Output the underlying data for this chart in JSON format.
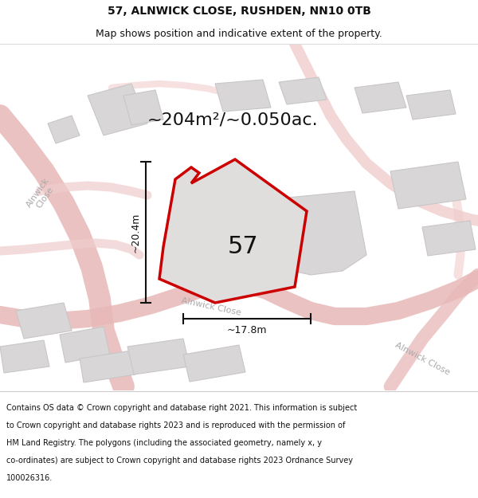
{
  "title_line1": "57, ALNWICK CLOSE, RUSHDEN, NN10 0TB",
  "title_line2": "Map shows position and indicative extent of the property.",
  "area_text": "~204m²/~0.050ac.",
  "label_57": "57",
  "dim_height": "~20.4m",
  "dim_width": "~17.8m",
  "footer_text": "Contains OS data © Crown copyright and database right 2021. This information is subject to Crown copyright and database rights 2023 and is reproduced with the permission of HM Land Registry. The polygons (including the associated geometry, namely x, y co-ordinates) are subject to Crown copyright and database rights 2023 Ordnance Survey 100026316.",
  "map_bg": "#f2f0f0",
  "road_color_main": "#e8b8b8",
  "road_color_light": "#f0cccc",
  "building_fill": "#d8d6d6",
  "building_stroke": "#c8c6c6",
  "plot_fill": "#e0dedc",
  "plot_stroke": "#cc0000",
  "dim_line_color": "#111111",
  "street_label_color": "#aaaaaa",
  "title_color": "#111111",
  "footer_color": "#111111",
  "title_fs": 10,
  "subtitle_fs": 9,
  "area_fs": 16,
  "label_fs": 22,
  "dim_fs": 9,
  "street_fs": 8,
  "footer_fs": 7
}
